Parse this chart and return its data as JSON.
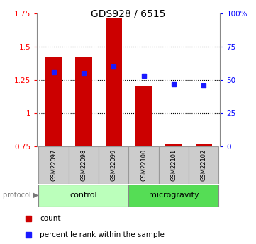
{
  "title": "GDS928 / 6515",
  "samples": [
    "GSM22097",
    "GSM22098",
    "GSM22099",
    "GSM22100",
    "GSM22101",
    "GSM22102"
  ],
  "bar_bottoms": [
    0.75,
    0.75,
    0.75,
    0.75,
    0.75,
    0.75
  ],
  "bar_tops": [
    1.42,
    1.42,
    1.72,
    1.2,
    0.77,
    0.77
  ],
  "blue_dots": [
    1.31,
    1.3,
    1.35,
    1.28,
    1.22,
    1.21
  ],
  "ylim": [
    0.75,
    1.75
  ],
  "ylim_right": [
    0,
    100
  ],
  "yticks_left": [
    0.75,
    1.0,
    1.25,
    1.5,
    1.75
  ],
  "ytick_labels_left": [
    "0.75",
    "1",
    "1.25",
    "1.5",
    "1.75"
  ],
  "yticks_right": [
    0,
    25,
    50,
    75,
    100
  ],
  "ytick_labels_right": [
    "0",
    "25",
    "50",
    "75",
    "100%"
  ],
  "hgrid_lines": [
    1.0,
    1.25,
    1.5
  ],
  "bar_color": "#cc0000",
  "dot_color": "#1a1aff",
  "group_control_color": "#bbffbb",
  "group_microgravity_color": "#55dd55",
  "sample_box_color": "#cccccc",
  "protocol_arrow_color": "#888888",
  "legend_count_color": "#cc0000",
  "legend_percentile_color": "#1a1aff",
  "bar_width": 0.55
}
